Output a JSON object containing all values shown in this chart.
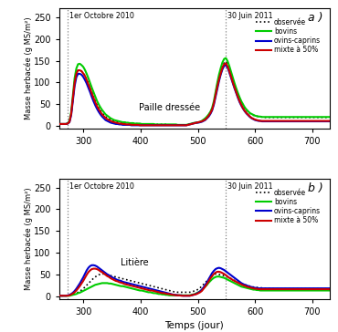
{
  "xlim": [
    258,
    730
  ],
  "ylim_a": [
    -5,
    270
  ],
  "ylim_b": [
    -5,
    270
  ],
  "yticks_a": [
    0,
    50,
    100,
    150,
    200,
    250
  ],
  "yticks_b": [
    0,
    50,
    100,
    150,
    200,
    250
  ],
  "xticks": [
    300,
    400,
    500,
    600,
    700
  ],
  "xlabel": "Temps (jour)",
  "ylabel": "Masse herbacée (g MS/m²)",
  "vline1_x": 272,
  "vline2_x": 548,
  "vline1_label": "1er Octobre 2010",
  "vline2_label": "30 Juin 2011",
  "label_a": "a )",
  "label_b": "b )",
  "annotation_a": "Paille dressée",
  "annotation_b": "Litière",
  "legend_labels": [
    "observée",
    "bovins",
    "ovins-caprins",
    "mixte à 50%"
  ],
  "colors": [
    "black",
    "#00cc00",
    "#0000cc",
    "#cc0000"
  ],
  "linestyles_legend": [
    "dotted",
    "solid",
    "solid",
    "solid"
  ],
  "linewidths": [
    1.2,
    1.5,
    1.5,
    1.5
  ],
  "x": [
    255,
    258,
    261,
    264,
    267,
    270,
    273,
    276,
    279,
    282,
    285,
    288,
    291,
    294,
    297,
    300,
    303,
    306,
    309,
    312,
    315,
    318,
    321,
    324,
    327,
    330,
    333,
    336,
    339,
    342,
    345,
    348,
    351,
    354,
    357,
    360,
    363,
    366,
    369,
    372,
    375,
    378,
    381,
    384,
    387,
    390,
    393,
    396,
    399,
    402,
    405,
    408,
    411,
    414,
    417,
    420,
    423,
    426,
    429,
    432,
    435,
    438,
    441,
    444,
    447,
    450,
    453,
    456,
    459,
    462,
    465,
    468,
    471,
    474,
    477,
    480,
    483,
    486,
    489,
    492,
    495,
    498,
    501,
    504,
    507,
    510,
    513,
    516,
    519,
    522,
    525,
    528,
    531,
    534,
    537,
    540,
    543,
    546,
    549,
    552,
    555,
    558,
    561,
    564,
    567,
    570,
    573,
    576,
    579,
    582,
    585,
    588,
    591,
    594,
    597,
    600,
    603,
    606,
    609,
    612,
    615,
    618,
    621,
    624,
    627,
    630,
    633,
    636,
    639,
    642,
    645,
    648,
    651,
    654,
    657,
    660,
    663,
    666,
    669,
    672,
    675,
    678,
    681,
    684,
    687,
    690,
    693,
    696,
    699,
    702,
    705,
    708,
    711,
    714,
    717,
    720,
    723,
    726,
    729
  ],
  "panel_a": {
    "observed_y": [
      5,
      5,
      5,
      5,
      5,
      5,
      6,
      10,
      28,
      65,
      100,
      120,
      128,
      128,
      126,
      122,
      116,
      108,
      98,
      88,
      78,
      68,
      58,
      49,
      42,
      36,
      30,
      26,
      22,
      19,
      17,
      15,
      13,
      12,
      11,
      10,
      10,
      9,
      9,
      8,
      8,
      7,
      7,
      7,
      6,
      6,
      6,
      5,
      5,
      5,
      5,
      5,
      5,
      4,
      4,
      4,
      4,
      4,
      4,
      4,
      4,
      4,
      4,
      4,
      4,
      3,
      3,
      3,
      3,
      3,
      3,
      3,
      3,
      3,
      3,
      3,
      4,
      5,
      6,
      7,
      8,
      8,
      9,
      10,
      12,
      14,
      16,
      20,
      25,
      32,
      40,
      55,
      75,
      95,
      112,
      125,
      138,
      145,
      148,
      142,
      132,
      120,
      108,
      96,
      85,
      74,
      64,
      55,
      48,
      42,
      37,
      32,
      29,
      27,
      25,
      24,
      23,
      22,
      21,
      21,
      20,
      20,
      20,
      20,
      20,
      20,
      20,
      20,
      20,
      20,
      20,
      20,
      20,
      20,
      20,
      20,
      20,
      20,
      20,
      20,
      20,
      20,
      20,
      20,
      20,
      20,
      20,
      20,
      20,
      20,
      20,
      20,
      20,
      20,
      20,
      20,
      20,
      20,
      20
    ],
    "bovins_y": [
      5,
      5,
      5,
      5,
      5,
      5,
      7,
      12,
      32,
      72,
      110,
      132,
      142,
      143,
      140,
      136,
      129,
      120,
      110,
      99,
      88,
      78,
      68,
      58,
      50,
      43,
      37,
      32,
      27,
      24,
      21,
      18,
      16,
      14,
      13,
      12,
      11,
      10,
      9,
      9,
      8,
      8,
      7,
      7,
      7,
      6,
      6,
      6,
      6,
      5,
      5,
      5,
      5,
      5,
      5,
      5,
      5,
      4,
      4,
      4,
      4,
      4,
      4,
      4,
      4,
      4,
      4,
      4,
      4,
      4,
      3,
      3,
      3,
      3,
      3,
      3,
      4,
      5,
      6,
      7,
      8,
      8,
      9,
      10,
      12,
      15,
      18,
      22,
      27,
      33,
      42,
      57,
      78,
      99,
      118,
      133,
      146,
      154,
      156,
      149,
      138,
      125,
      112,
      99,
      87,
      76,
      66,
      57,
      50,
      43,
      38,
      34,
      30,
      28,
      26,
      24,
      23,
      22,
      22,
      21,
      21,
      21,
      21,
      21,
      21,
      21,
      21,
      21,
      21,
      21,
      21,
      21,
      21,
      21,
      21,
      21,
      21,
      21,
      21,
      21,
      21,
      21,
      21,
      21,
      21,
      21,
      21,
      21,
      21,
      21,
      21,
      21,
      21,
      21,
      21,
      21,
      21,
      21,
      21
    ],
    "ovins_y": [
      5,
      5,
      5,
      5,
      5,
      5,
      6,
      9,
      25,
      58,
      92,
      112,
      120,
      120,
      118,
      113,
      106,
      98,
      88,
      78,
      67,
      57,
      48,
      40,
      33,
      27,
      22,
      18,
      14,
      12,
      10,
      8,
      7,
      6,
      5,
      5,
      4,
      4,
      3,
      3,
      3,
      3,
      3,
      2,
      2,
      2,
      2,
      2,
      2,
      2,
      2,
      2,
      2,
      2,
      2,
      2,
      2,
      2,
      2,
      2,
      2,
      2,
      2,
      2,
      2,
      2,
      2,
      2,
      2,
      2,
      2,
      2,
      2,
      2,
      2,
      2,
      3,
      4,
      5,
      6,
      7,
      8,
      8,
      9,
      10,
      12,
      14,
      18,
      22,
      28,
      36,
      49,
      67,
      86,
      103,
      118,
      130,
      138,
      140,
      134,
      123,
      111,
      99,
      87,
      76,
      65,
      55,
      47,
      40,
      34,
      29,
      25,
      21,
      18,
      16,
      14,
      13,
      12,
      12,
      11,
      11,
      11,
      11,
      11,
      11,
      11,
      11,
      11,
      11,
      11,
      11,
      11,
      11,
      11,
      11,
      11,
      11,
      11,
      11,
      11,
      11,
      11,
      11,
      11,
      11,
      11,
      11,
      11,
      11,
      11,
      11,
      11,
      11,
      11,
      11,
      11,
      11,
      11,
      11
    ],
    "mixte_y": [
      5,
      5,
      5,
      5,
      5,
      5,
      6,
      10,
      28,
      64,
      100,
      120,
      128,
      128,
      126,
      121,
      115,
      106,
      96,
      86,
      75,
      65,
      55,
      46,
      39,
      33,
      27,
      23,
      19,
      16,
      14,
      12,
      10,
      9,
      8,
      7,
      6,
      6,
      5,
      5,
      4,
      4,
      4,
      3,
      3,
      3,
      3,
      3,
      2,
      2,
      2,
      2,
      2,
      2,
      2,
      2,
      2,
      2,
      2,
      2,
      2,
      2,
      2,
      2,
      2,
      2,
      2,
      2,
      2,
      2,
      2,
      2,
      2,
      2,
      2,
      2,
      3,
      4,
      5,
      6,
      7,
      8,
      9,
      10,
      11,
      13,
      15,
      19,
      24,
      30,
      38,
      52,
      71,
      90,
      107,
      121,
      134,
      142,
      144,
      137,
      126,
      114,
      101,
      89,
      78,
      67,
      57,
      49,
      41,
      35,
      30,
      26,
      22,
      19,
      17,
      15,
      14,
      13,
      12,
      12,
      12,
      12,
      12,
      12,
      12,
      12,
      12,
      12,
      12,
      12,
      12,
      12,
      12,
      12,
      12,
      12,
      12,
      12,
      12,
      12,
      12,
      12,
      12,
      12,
      12,
      12,
      12,
      12,
      12,
      12,
      12,
      12,
      12,
      12,
      12,
      12,
      12,
      12,
      12
    ]
  },
  "panel_b": {
    "observed_y": [
      2,
      2,
      2,
      2,
      2,
      2,
      2,
      3,
      4,
      5,
      6,
      8,
      10,
      12,
      15,
      18,
      22,
      26,
      30,
      34,
      38,
      42,
      45,
      48,
      50,
      51,
      52,
      52,
      51,
      50,
      49,
      48,
      47,
      46,
      45,
      44,
      43,
      42,
      41,
      40,
      39,
      38,
      37,
      36,
      35,
      34,
      33,
      32,
      31,
      30,
      29,
      28,
      27,
      26,
      25,
      24,
      23,
      22,
      21,
      20,
      19,
      18,
      17,
      16,
      15,
      14,
      13,
      12,
      11,
      11,
      10,
      10,
      10,
      10,
      10,
      10,
      10,
      10,
      11,
      12,
      14,
      15,
      17,
      20,
      24,
      28,
      32,
      36,
      40,
      44,
      47,
      50,
      52,
      52,
      51,
      50,
      49,
      48,
      47,
      45,
      43,
      41,
      39,
      37,
      35,
      33,
      31,
      30,
      28,
      27,
      26,
      25,
      24,
      23,
      22,
      21,
      21,
      20,
      20,
      20,
      19,
      19,
      19,
      19,
      19,
      19,
      18,
      18,
      18,
      18,
      18,
      18,
      18,
      18,
      18,
      18,
      18,
      18,
      18,
      18,
      18,
      18,
      18,
      18,
      18,
      18,
      18,
      18,
      18,
      18,
      18,
      18,
      18,
      18,
      18,
      18,
      18,
      18,
      18
    ],
    "bovins_y": [
      2,
      2,
      2,
      2,
      2,
      2,
      2,
      2,
      3,
      4,
      5,
      6,
      8,
      9,
      11,
      13,
      15,
      17,
      19,
      21,
      23,
      25,
      27,
      28,
      29,
      30,
      31,
      31,
      31,
      31,
      30,
      30,
      29,
      28,
      27,
      26,
      25,
      24,
      24,
      23,
      22,
      21,
      20,
      19,
      18,
      17,
      16,
      15,
      14,
      14,
      13,
      12,
      11,
      10,
      10,
      9,
      8,
      8,
      7,
      6,
      6,
      5,
      5,
      4,
      4,
      3,
      3,
      3,
      3,
      3,
      3,
      3,
      3,
      3,
      3,
      3,
      3,
      3,
      4,
      5,
      6,
      8,
      10,
      12,
      15,
      19,
      23,
      27,
      32,
      36,
      40,
      43,
      45,
      46,
      46,
      45,
      44,
      43,
      41,
      39,
      37,
      35,
      33,
      31,
      29,
      27,
      25,
      23,
      22,
      21,
      20,
      19,
      18,
      17,
      16,
      16,
      15,
      15,
      14,
      14,
      14,
      14,
      14,
      14,
      14,
      14,
      14,
      14,
      14,
      14,
      14,
      14,
      14,
      14,
      14,
      14,
      14,
      14,
      14,
      14,
      14,
      14,
      14,
      14,
      14,
      14,
      14,
      14,
      14,
      14,
      14,
      14,
      14,
      14,
      14,
      14,
      14,
      14,
      14
    ],
    "ovins_y": [
      2,
      2,
      2,
      2,
      2,
      2,
      3,
      4,
      6,
      9,
      13,
      18,
      24,
      30,
      37,
      44,
      52,
      60,
      66,
      70,
      72,
      72,
      71,
      69,
      66,
      63,
      60,
      57,
      54,
      51,
      49,
      46,
      44,
      42,
      40,
      38,
      37,
      36,
      34,
      33,
      32,
      31,
      30,
      29,
      28,
      27,
      26,
      25,
      24,
      23,
      22,
      21,
      20,
      19,
      18,
      17,
      16,
      15,
      14,
      13,
      12,
      11,
      10,
      9,
      8,
      7,
      6,
      5,
      4,
      4,
      3,
      3,
      3,
      2,
      2,
      2,
      2,
      2,
      3,
      4,
      5,
      7,
      9,
      12,
      16,
      21,
      27,
      33,
      40,
      47,
      54,
      59,
      63,
      65,
      66,
      65,
      63,
      61,
      58,
      55,
      52,
      49,
      46,
      43,
      40,
      37,
      34,
      31,
      29,
      27,
      26,
      24,
      23,
      22,
      21,
      20,
      20,
      19,
      19,
      19,
      19,
      19,
      19,
      19,
      19,
      19,
      19,
      19,
      19,
      19,
      19,
      19,
      19,
      19,
      19,
      19,
      19,
      19,
      19,
      19,
      19,
      19,
      19,
      19,
      19,
      19,
      19,
      19,
      19,
      19,
      19,
      19,
      19,
      19,
      19,
      19,
      19,
      19,
      19
    ],
    "mixte_y": [
      2,
      2,
      2,
      2,
      2,
      2,
      2,
      3,
      5,
      7,
      10,
      14,
      19,
      24,
      30,
      36,
      43,
      50,
      56,
      60,
      63,
      64,
      64,
      63,
      61,
      58,
      56,
      53,
      50,
      47,
      45,
      42,
      40,
      38,
      36,
      35,
      33,
      32,
      31,
      29,
      28,
      27,
      26,
      25,
      24,
      23,
      22,
      21,
      20,
      19,
      18,
      17,
      16,
      15,
      14,
      14,
      13,
      12,
      11,
      10,
      9,
      8,
      8,
      7,
      6,
      6,
      5,
      4,
      4,
      3,
      3,
      3,
      2,
      2,
      2,
      2,
      2,
      2,
      3,
      4,
      5,
      6,
      8,
      10,
      13,
      18,
      23,
      29,
      35,
      42,
      47,
      52,
      55,
      57,
      57,
      56,
      54,
      52,
      49,
      46,
      43,
      41,
      38,
      36,
      34,
      32,
      30,
      28,
      26,
      25,
      23,
      22,
      21,
      20,
      19,
      18,
      18,
      17,
      17,
      17,
      17,
      17,
      17,
      17,
      17,
      17,
      17,
      17,
      17,
      17,
      17,
      17,
      17,
      17,
      17,
      17,
      17,
      17,
      17,
      17,
      17,
      17,
      17,
      17,
      17,
      17,
      17,
      17,
      17,
      17,
      17,
      17,
      17,
      17,
      17,
      17,
      17,
      17,
      17
    ]
  }
}
